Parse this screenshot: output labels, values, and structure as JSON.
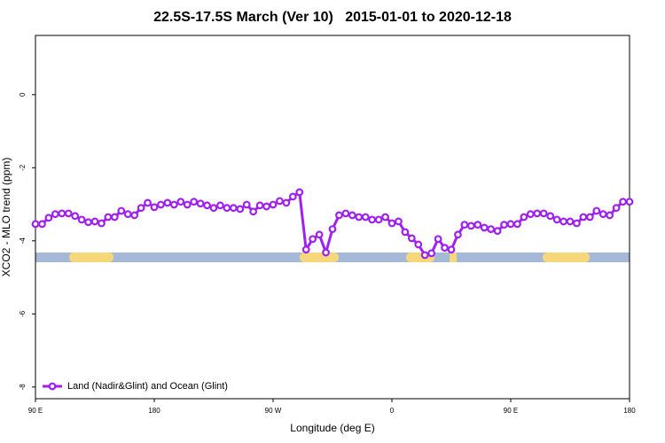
{
  "chart_data": {
    "type": "line",
    "title": "22.5S-17.5S March (Ver 10)   2015-01-01 to 2020-12-18",
    "x_label": "Longitude (deg E)",
    "y_label": "XCO2 - MLO trend (ppm)",
    "xlim": [
      90,
      540
    ],
    "ylim": [
      -8.32,
      1.62
    ],
    "xticks": [
      {
        "value": 90,
        "label": "90 E"
      },
      180,
      {
        "value": 270,
        "label": "90 W"
      },
      {
        "value": 360,
        "label": "0"
      },
      {
        "value": 450,
        "label": "90 E"
      },
      {
        "value": 540,
        "label": "180"
      }
    ],
    "yticks": [
      0,
      -2,
      -4,
      -6,
      -8
    ],
    "grid": false,
    "legend": "bottom-left",
    "x": [
      90,
      95,
      100,
      105,
      110,
      115,
      120,
      125,
      130,
      135,
      140,
      145,
      150,
      155,
      160,
      165,
      170,
      175,
      180,
      185,
      190,
      195,
      200,
      205,
      210,
      215,
      220,
      225,
      230,
      235,
      240,
      245,
      250,
      255,
      260,
      265,
      270,
      275,
      280,
      285,
      290,
      295,
      300,
      305,
      310,
      315,
      320,
      325,
      330,
      335,
      340,
      345,
      350,
      355,
      360,
      365,
      370,
      375,
      380,
      385,
      390,
      395,
      400,
      405,
      410,
      415,
      420,
      425,
      430,
      435,
      440,
      445,
      450,
      455,
      460,
      465,
      470,
      475,
      480,
      485,
      490,
      495,
      500,
      505,
      510,
      515,
      520,
      525,
      530,
      535,
      540
    ],
    "series": [
      {
        "name": "Land (Nadir&Glint) and Ocean (Glint)",
        "color": "#a020f0",
        "values": [
          -3.54,
          -3.54,
          -3.37,
          -3.27,
          -3.25,
          -3.25,
          -3.32,
          -3.42,
          -3.49,
          -3.47,
          -3.52,
          -3.35,
          -3.35,
          -3.18,
          -3.27,
          -3.3,
          -3.1,
          -2.96,
          -3.08,
          -3.01,
          -2.96,
          -3.01,
          -2.93,
          -3.01,
          -2.93,
          -2.98,
          -3.03,
          -3.1,
          -3.03,
          -3.1,
          -3.1,
          -3.13,
          -3.01,
          -3.2,
          -3.03,
          -3.06,
          -3.01,
          -2.91,
          -2.96,
          -2.79,
          -2.67,
          -4.24,
          -3.95,
          -3.83,
          -4.32,
          -3.68,
          -3.3,
          -3.25,
          -3.3,
          -3.35,
          -3.35,
          -3.42,
          -3.42,
          -3.35,
          -3.52,
          -3.47,
          -3.76,
          -3.93,
          -4.1,
          -4.39,
          -4.34,
          -3.95,
          -4.19,
          -4.24,
          -3.83,
          -3.56,
          -3.59,
          -3.56,
          -3.64,
          -3.68,
          -3.73,
          -3.56,
          -3.54,
          -3.54,
          -3.35,
          -3.27,
          -3.25,
          -3.25,
          -3.32,
          -3.42,
          -3.47,
          -3.47,
          -3.52,
          -3.35,
          -3.35,
          -3.18,
          -3.27,
          -3.3,
          -3.1,
          -2.93,
          -2.93
        ]
      }
    ]
  }
}
